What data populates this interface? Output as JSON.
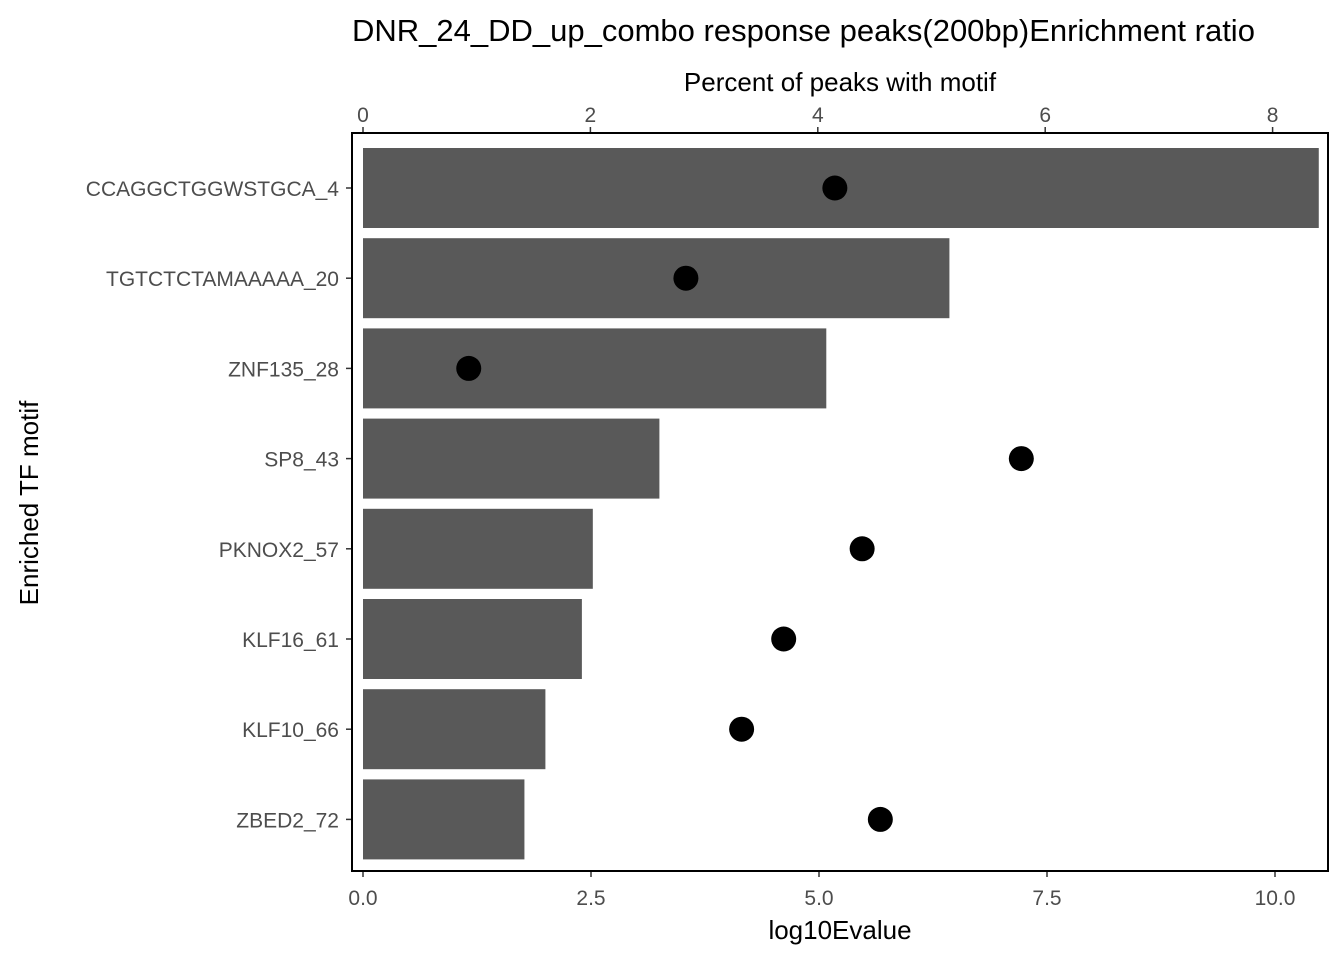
{
  "chart_data": {
    "type": "bar",
    "orientation": "horizontal",
    "title": "DNR_24_DD_up_combo response peaks(200bp)Enrichment ratio",
    "ylabel": "Enriched TF motif",
    "xlabel": "log10Evalue",
    "x2label": "Percent of peaks with motif",
    "categories": [
      "CCAGGCTGGWSTGCA_4",
      "TGTCTCTAMAAAAA_20",
      "ZNF135_28",
      "SP8_43",
      "PKNOX2_57",
      "KLF16_61",
      "KLF10_66",
      "ZBED2_72"
    ],
    "series": [
      {
        "axis": "bottom",
        "mark": "bar",
        "color": "#595959",
        "values": [
          10.48,
          6.43,
          5.08,
          3.25,
          2.52,
          2.4,
          2.0,
          1.77
        ]
      },
      {
        "axis": "top",
        "mark": "point",
        "color": "#000000",
        "values": [
          4.15,
          2.84,
          0.93,
          5.79,
          4.39,
          3.7,
          3.33,
          4.55
        ]
      }
    ],
    "xlim": [
      0,
      10.5
    ],
    "xticks": [
      0.0,
      2.5,
      5.0,
      7.5,
      10.0
    ],
    "xtick_labels": [
      "0.0",
      "2.5",
      "5.0",
      "7.5",
      "10.0"
    ],
    "x2lim": [
      0,
      8.4
    ],
    "x2ticks": [
      0,
      2,
      4,
      6,
      8
    ],
    "x2tick_labels": [
      "0",
      "2",
      "4",
      "6",
      "8"
    ],
    "grid": false,
    "legend": "none"
  }
}
